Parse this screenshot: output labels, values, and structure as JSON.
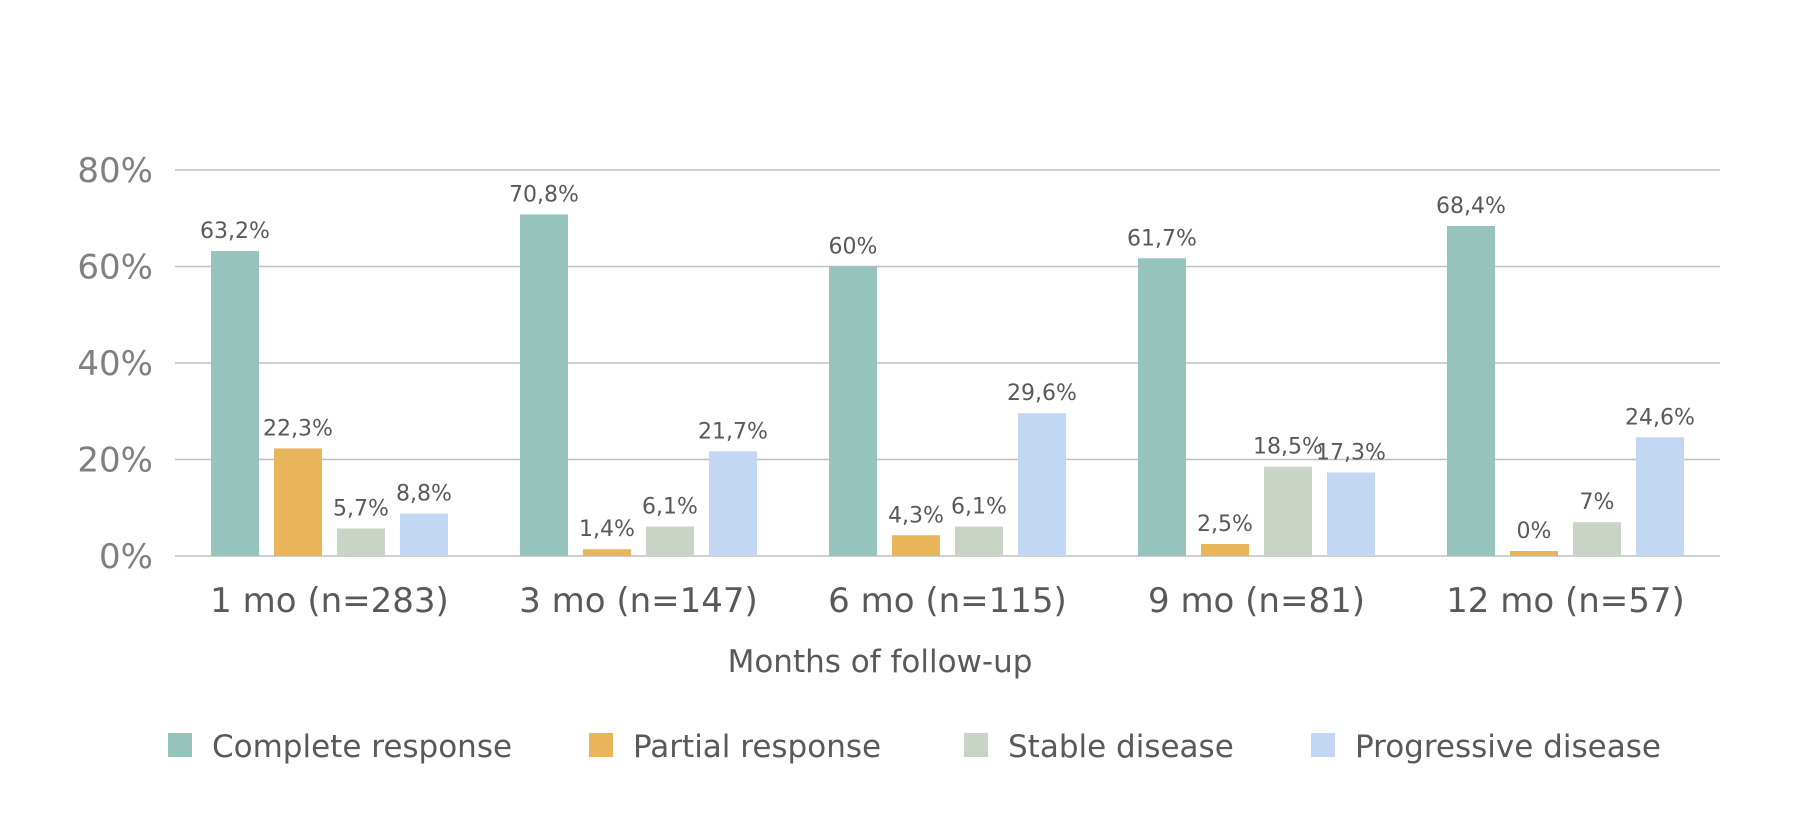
{
  "chart_data": {
    "type": "bar",
    "xlabel": "Months of follow-up",
    "ylabel": "",
    "ylim": [
      0,
      80
    ],
    "y_ticks": [
      0,
      20,
      40,
      60,
      80
    ],
    "y_tick_format": "percent",
    "grid": true,
    "legend_position": "bottom",
    "categories": [
      "1 mo (n=283)",
      "3 mo (n=147)",
      "6 mo (n=115)",
      "9 mo (n=81)",
      "12 mo (n=57)"
    ],
    "series": [
      {
        "name": "Complete response",
        "color": "#96c4bd",
        "values": [
          63.2,
          70.8,
          60,
          61.7,
          68.4
        ],
        "labels": [
          "63,2%",
          "70,8%",
          "60%",
          "61,7%",
          "68,4%"
        ]
      },
      {
        "name": "Partial response",
        "color": "#e8b55a",
        "values": [
          22.3,
          1.4,
          4.3,
          2.5,
          0
        ],
        "labels": [
          "22,3%",
          "1,4%",
          "4,3%",
          "2,5%",
          "0%"
        ]
      },
      {
        "name": "Stable disease",
        "color": "#c9d3c6",
        "values": [
          5.7,
          6.1,
          6.1,
          18.5,
          7
        ],
        "labels": [
          "5,7%",
          "6,1%",
          "6,1%",
          "18,5%",
          "7%"
        ]
      },
      {
        "name": "Progressive disease",
        "color": "#c2d7f2",
        "values": [
          8.8,
          21.7,
          29.6,
          17.3,
          24.6
        ],
        "labels": [
          "8,8%",
          "21,7%",
          "29,6%",
          "17,3%",
          "24,6%"
        ]
      }
    ]
  }
}
